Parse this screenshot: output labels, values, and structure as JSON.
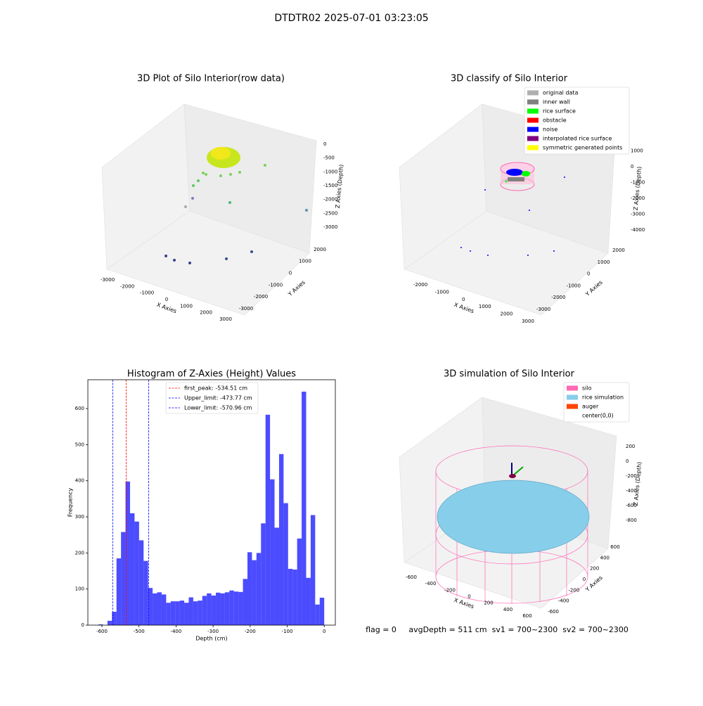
{
  "figure": {
    "title": "DTDTR02 2025-07-01 03:23:05",
    "annotation": "flag = 0     avgDepth = 511 cm  sv1 = 700~2300  sv2 = 700~2300"
  },
  "chart_data": [
    {
      "type": "scatter3d",
      "title": "3D Plot of Silo Interior(row data)",
      "xlabel": "X Axies",
      "ylabel": "Y Axies",
      "zlabel": "Z Axies (Depth)",
      "xlim": [
        -3300,
        3300
      ],
      "xticks": [
        -3000,
        -2000,
        -1000,
        0,
        1000,
        2000,
        3000
      ],
      "ylim": [
        -3300,
        2300
      ],
      "yticks": [
        -3000,
        -2000,
        -1000,
        0,
        1000,
        2000
      ],
      "zlim": [
        -3300,
        300
      ],
      "zticks": [
        0,
        -500,
        -1000,
        -1500,
        -2000,
        -2500,
        -3000
      ]
    },
    {
      "type": "scatter3d",
      "title": "3D classify of Silo Interior",
      "xlabel": "X Axies",
      "ylabel": "Y Axies",
      "zlabel": "Z Axies (Depth)",
      "xlim": [
        -2700,
        3300
      ],
      "xticks": [
        -2000,
        -1000,
        0,
        1000,
        2000,
        3000
      ],
      "ylim": [
        -3300,
        2300
      ],
      "yticks": [
        -3000,
        -2000,
        -1000,
        0,
        1000,
        2000
      ],
      "zlim": [
        -4300,
        1300
      ],
      "zticks": [
        1000,
        0,
        -1000,
        -2000,
        -3000,
        -4000
      ],
      "legend": [
        {
          "name": "original data",
          "color": "#b0b0b0"
        },
        {
          "name": "inner wall",
          "color": "#808080"
        },
        {
          "name": "rice surface",
          "color": "#00ff00"
        },
        {
          "name": "obstacle",
          "color": "#ff0000"
        },
        {
          "name": "noise",
          "color": "#0000ff"
        },
        {
          "name": "interpolated rice surface",
          "color": "#800080"
        },
        {
          "name": "symmetric generated points",
          "color": "#ffff00"
        }
      ]
    },
    {
      "type": "histogram",
      "title": "Histogram of Z-Axies (Height) Values",
      "xlabel": "Depth (cm)",
      "ylabel": "Frequency",
      "color": "#0000ff",
      "bins": [
        -609.5,
        -597.31,
        -585.12,
        -572.93,
        -560.74,
        -548.55,
        -536.36,
        -524.17,
        -511.98,
        -499.79,
        -487.6,
        -475.41,
        -463.22,
        -451.03,
        -438.84,
        -426.65,
        -414.46,
        -402.27,
        -390.08,
        -377.89,
        -365.7,
        -353.51,
        -341.32,
        -329.13,
        -316.94,
        -304.75,
        -292.56,
        -280.37,
        -268.18,
        -255.99,
        -243.8,
        -231.61,
        -219.42,
        -207.23,
        -195.04,
        -182.85,
        -170.66,
        -158.47,
        -146.28,
        -134.09,
        -121.9,
        -109.71,
        -97.52,
        -85.33,
        -73.14,
        -60.95,
        -48.76,
        -36.57,
        -24.38,
        -12.19,
        0
      ],
      "values": [
        2,
        0,
        12,
        37,
        185,
        258,
        398,
        310,
        287,
        235,
        178,
        103,
        88,
        91,
        85,
        62,
        66,
        66,
        68,
        62,
        77,
        66,
        68,
        81,
        88,
        82,
        90,
        88,
        91,
        96,
        93,
        92,
        128,
        202,
        180,
        200,
        282,
        583,
        404,
        270,
        474,
        338,
        156,
        154,
        240,
        647,
        131,
        305,
        57,
        76
      ],
      "xlim": [
        -638,
        30
      ],
      "xticks": [
        -600,
        -500,
        -400,
        -300,
        -200,
        -100,
        0
      ],
      "ylim": [
        0,
        680
      ],
      "yticks": [
        0,
        100,
        200,
        300,
        400,
        500,
        600
      ],
      "vlines": [
        {
          "name": "first_peak: -534.51 cm",
          "value": -534.51,
          "color": "#ff0000"
        },
        {
          "name": "Upper_limit: -473.77 cm",
          "value": -473.77,
          "color": "#0000ff"
        },
        {
          "name": "Lower_limit: -570.96 cm",
          "value": -570.96,
          "color": "#0000ff"
        }
      ]
    },
    {
      "type": "surface3d",
      "title": "3D simulation of Silo Interior",
      "xlabel": "X Axies",
      "ylabel": "Y Axies",
      "zlabel": "Z Axies (Depth)",
      "xlim": [
        -700,
        700
      ],
      "xticks": [
        -600,
        -400,
        -200,
        0,
        200,
        400,
        600
      ],
      "ylim": [
        -700,
        700
      ],
      "yticks": [
        -600,
        -400,
        -200,
        0,
        200,
        400,
        600
      ],
      "zlim": [
        -950,
        350
      ],
      "zticks": [
        200,
        0,
        -200,
        -400,
        -600,
        -800
      ],
      "legend": [
        {
          "name": "silo",
          "color": "#ff69b4"
        },
        {
          "name": "rice simulation",
          "color": "#87ceeb"
        },
        {
          "name": "auger",
          "color": "#ff4500"
        },
        {
          "name": "center(0,0)",
          "color": "#ffffff"
        }
      ]
    }
  ]
}
